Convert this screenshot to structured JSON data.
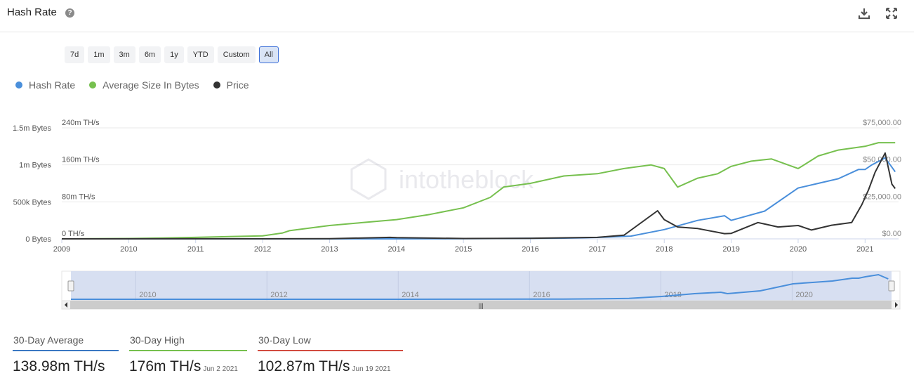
{
  "header": {
    "title": "Hash Rate",
    "help_glyph": "?",
    "icons": [
      "download-icon",
      "expand-icon"
    ]
  },
  "range_selector": {
    "buttons": [
      "7d",
      "1m",
      "3m",
      "6m",
      "1y",
      "YTD",
      "Custom",
      "All"
    ],
    "selected": "All"
  },
  "legend": [
    {
      "name": "Hash Rate",
      "color": "#4a8fdb"
    },
    {
      "name": "Average Size In Bytes",
      "color": "#76c04e"
    },
    {
      "name": "Price",
      "color": "#333333"
    }
  ],
  "watermark": "intotheblock",
  "chart_data": {
    "type": "line",
    "x_axis": {
      "min": 2009,
      "max": 2021.5,
      "ticks": [
        "2009",
        "2010",
        "2011",
        "2012",
        "2013",
        "2014",
        "2015",
        "2016",
        "2017",
        "2018",
        "2019",
        "2020",
        "2021"
      ]
    },
    "y_axes": [
      {
        "series": "Average Size In Bytes",
        "position": "left",
        "ticks": [
          "0 Bytes",
          "500k Bytes",
          "1m Bytes",
          "1.5m Bytes"
        ],
        "range": [
          0,
          1500000
        ]
      },
      {
        "series": "Hash Rate",
        "position": "left-inner",
        "ticks": [
          "0 TH/s",
          "80m TH/s",
          "160m TH/s",
          "240m TH/s"
        ],
        "range": [
          0,
          240000000
        ]
      },
      {
        "series": "Price",
        "position": "right",
        "ticks": [
          "$0.00",
          "$25,000.00",
          "$50,000.00",
          "$75,000.00"
        ],
        "range": [
          0,
          75000
        ]
      }
    ],
    "grid": true,
    "legend_position": "top-left",
    "series": [
      {
        "name": "Average Size In Bytes",
        "axis": "bytes",
        "x": [
          2009,
          2010,
          2010.5,
          2011,
          2011.5,
          2012,
          2012.3,
          2012.4,
          2013,
          2013.5,
          2014,
          2014.5,
          2015,
          2015.4,
          2015.6,
          2016,
          2016.5,
          2017,
          2017.4,
          2017.8,
          2018,
          2018.2,
          2018.5,
          2018.8,
          2019,
          2019.3,
          2019.6,
          2020,
          2020.3,
          2020.6,
          2021,
          2021.2,
          2021.45
        ],
        "y": [
          0,
          5000,
          10000,
          20000,
          30000,
          40000,
          80000,
          110000,
          180000,
          220000,
          260000,
          330000,
          420000,
          560000,
          700000,
          750000,
          850000,
          880000,
          950000,
          1000000,
          950000,
          700000,
          820000,
          880000,
          980000,
          1050000,
          1080000,
          950000,
          1120000,
          1200000,
          1250000,
          1300000,
          1300000
        ]
      },
      {
        "name": "Hash Rate",
        "axis": "hashrate",
        "x": [
          2009,
          2013,
          2014,
          2015,
          2016,
          2016.5,
          2017,
          2017.5,
          2018,
          2018.5,
          2018.9,
          2019,
          2019.5,
          2020,
          2020.3,
          2020.6,
          2020.9,
          2021,
          2021.1,
          2021.3,
          2021.45
        ],
        "y": [
          0,
          0,
          50000,
          300000,
          1000000,
          1500000,
          3000000,
          6000000,
          20000000,
          40000000,
          50000000,
          40000000,
          60000000,
          110000000,
          120000000,
          130000000,
          150000000,
          150000000,
          160000000,
          175000000,
          145000000
        ]
      },
      {
        "name": "Price",
        "axis": "price",
        "x": [
          2009,
          2013,
          2013.9,
          2014,
          2015,
          2016,
          2016.9,
          2017,
          2017.4,
          2017.9,
          2018,
          2018.2,
          2018.5,
          2018.9,
          2019,
          2019.4,
          2019.5,
          2019.7,
          2020,
          2020.2,
          2020.5,
          2020.8,
          2020.95,
          2021.05,
          2021.15,
          2021.3,
          2021.4,
          2021.45
        ],
        "y": [
          0,
          100,
          1000,
          800,
          250,
          400,
          950,
          1000,
          2500,
          19000,
          13000,
          8000,
          7000,
          3500,
          3700,
          11000,
          10000,
          8000,
          9000,
          6000,
          9200,
          11000,
          23000,
          33000,
          45000,
          58000,
          37000,
          34000
        ]
      }
    ]
  },
  "navigator": {
    "labels": [
      "2010",
      "2012",
      "2014",
      "2016",
      "2018",
      "2020"
    ],
    "scroll_handle_glyph": "|||"
  },
  "stats": [
    {
      "label": "30-Day Average",
      "value": "138.98m TH/s",
      "date": "",
      "color": "#3a78c2"
    },
    {
      "label": "30-Day High",
      "value": "176m TH/s",
      "date": "Jun 2 2021",
      "color": "#76c04e"
    },
    {
      "label": "30-Day Low",
      "value": "102.87m TH/s",
      "date": "Jun 19 2021",
      "color": "#d24b3f"
    }
  ]
}
